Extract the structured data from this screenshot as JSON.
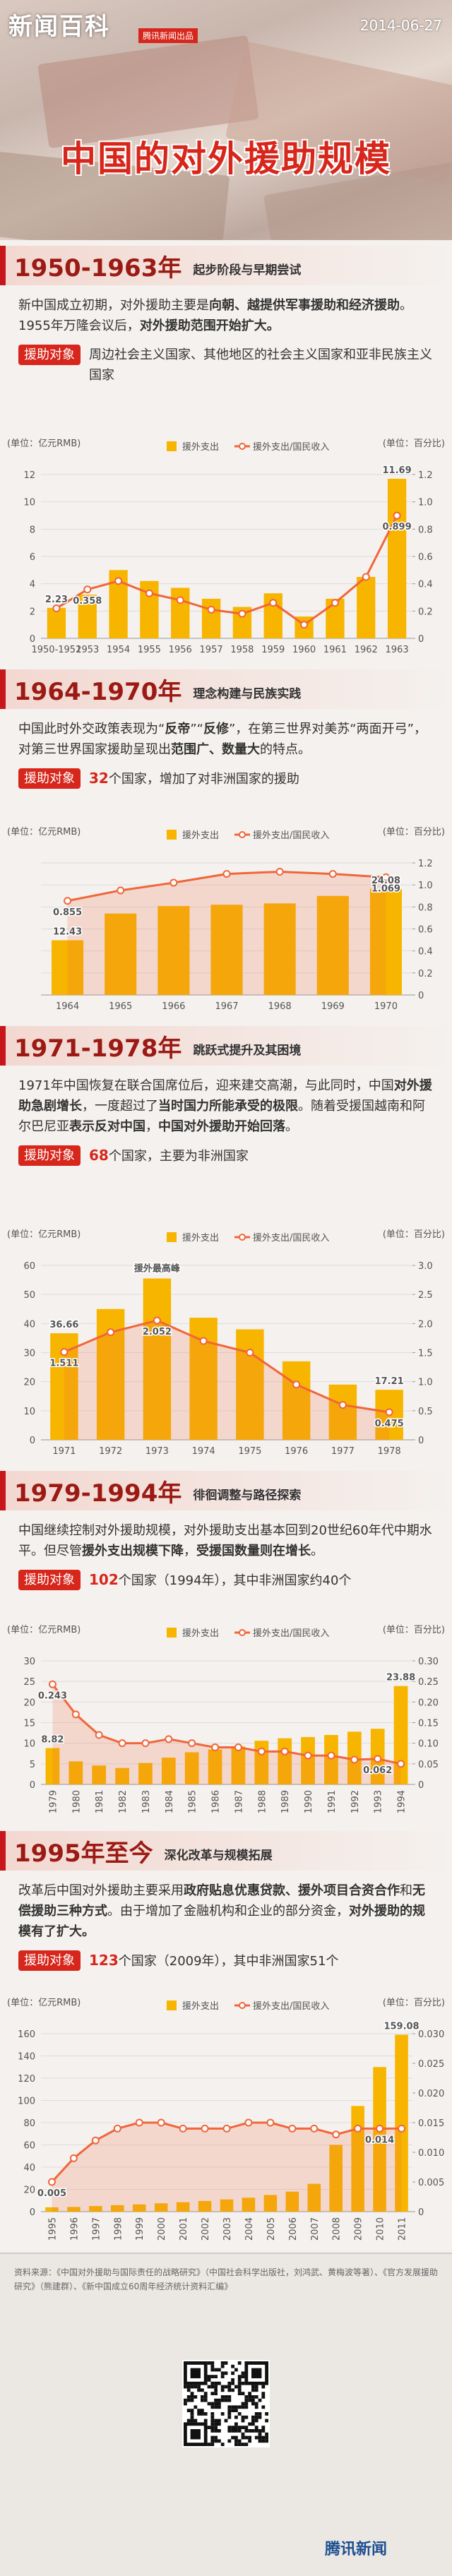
{
  "header": {
    "logo": "新闻百科",
    "brand": "腾讯新闻出品",
    "date": "2014-06-27",
    "title": "中国的对外援助规模"
  },
  "sections": [
    {
      "title": "1950-1963年",
      "subtitle": "起步阶段与早期尝试",
      "paragraph": [
        {
          "text": "新中国成立初期，对外援助主要是"
        },
        {
          "text": "向朝、越提供军事援助和经济援助",
          "style": "bold"
        },
        {
          "text": "。1955年万隆会议后，"
        },
        {
          "text": "对外援助范围开始扩大。",
          "style": "bold"
        }
      ],
      "tag": "援助对象",
      "target": [
        {
          "text": "周边社会主义国家、其他地区的社会主义国家和亚非民族主义国家"
        }
      ]
    },
    {
      "title": "1964-1970年",
      "subtitle": "理念构建与民族实践",
      "paragraph": [
        {
          "text": "中国此时外交政策表现为“"
        },
        {
          "text": "反帝",
          "style": "bold"
        },
        {
          "text": "”“"
        },
        {
          "text": "反修",
          "style": "bold"
        },
        {
          "text": "”，在第三世界对美苏“两面开弓”，对第三世界国家援助呈现出"
        },
        {
          "text": "范围广、数量大",
          "style": "bold"
        },
        {
          "text": "的特点。"
        }
      ],
      "tag": "援助对象",
      "target": [
        {
          "text": "32",
          "style": "red"
        },
        {
          "text": "个国家，增加了对非洲国家的援助"
        }
      ]
    },
    {
      "title": "1971-1978年",
      "subtitle": "跳跃式提升及其困境",
      "paragraph": [
        {
          "text": "1971年中国恢复在联合国席位后，迎来建交高潮，与此同时，中国"
        },
        {
          "text": "对外援助急剧增长",
          "style": "bold"
        },
        {
          "text": "，一度超过了"
        },
        {
          "text": "当时国力所能承受的极限",
          "style": "bold"
        },
        {
          "text": "。随着受援国越南和阿尔巴尼亚"
        },
        {
          "text": "表示反对中国",
          "style": "bold"
        },
        {
          "text": "，"
        },
        {
          "text": "中国对外援助开始回落",
          "style": "bold"
        },
        {
          "text": "。"
        }
      ],
      "tag": "援助对象",
      "target": [
        {
          "text": "68",
          "style": "red"
        },
        {
          "text": "个国家，主要为非洲国家"
        }
      ]
    },
    {
      "title": "1979-1994年",
      "subtitle": "徘徊调整与路径探索",
      "paragraph": [
        {
          "text": "中国继续控制对外援助规模，对外援助支出基本回到20世纪60年代中期水平。但尽管"
        },
        {
          "text": "援外支出规模下降",
          "style": "bold"
        },
        {
          "text": "，"
        },
        {
          "text": "受援国数量则在增长",
          "style": "bold"
        },
        {
          "text": "。"
        }
      ],
      "tag": "援助对象",
      "target": [
        {
          "text": "102",
          "style": "red"
        },
        {
          "text": "个国家（1994年），其中非洲国家约40个"
        }
      ]
    },
    {
      "title": "1995年至今",
      "subtitle": "深化改革与规模拓展",
      "paragraph": [
        {
          "text": "改革后中国对外援助主要采用"
        },
        {
          "text": "政府贴息优惠贷款、援外项目合资合作",
          "style": "bold"
        },
        {
          "text": "和"
        },
        {
          "text": "无偿援助三种方式",
          "style": "bold"
        },
        {
          "text": "。由于增加了金融机构和企业的部分资金，"
        },
        {
          "text": "对外援助的规模有了扩大。",
          "style": "bold"
        }
      ],
      "tag": "援助对象",
      "target": [
        {
          "text": "123",
          "style": "red"
        },
        {
          "text": "个国家（2009年），其中非洲国家51个"
        }
      ]
    }
  ],
  "chart_data": [
    {
      "type": "bar_line",
      "y_label": "(单位：亿元RMB)",
      "y2_label": "(单位：百分比)",
      "x": [
        "1950-1952",
        "1953",
        "1954",
        "1955",
        "1956",
        "1957",
        "1958",
        "1959",
        "1960",
        "1961",
        "1962",
        "1963"
      ],
      "series": [
        {
          "name": "援外支出",
          "type": "bar",
          "color": "#f7b500",
          "values": [
            2.23,
            3.2,
            5.0,
            4.2,
            3.7,
            2.9,
            2.3,
            3.3,
            1.6,
            2.9,
            4.5,
            11.69
          ]
        },
        {
          "name": "援外支出/国民收入",
          "type": "line",
          "axis": "y2",
          "color": "#f0663a",
          "area": false,
          "values": [
            0.22,
            0.358,
            0.42,
            0.33,
            0.28,
            0.21,
            0.18,
            0.26,
            0.1,
            0.26,
            0.45,
            0.899
          ]
        }
      ],
      "ylim": [
        0,
        12
      ],
      "yticks": [
        0,
        2,
        4,
        6,
        8,
        10,
        12
      ],
      "y2lim": [
        0,
        1.2
      ],
      "y2ticks": [
        0,
        0.2,
        0.4,
        0.6,
        0.8,
        {
          "value": 1,
          "label": "1.0"
        },
        1.2
      ],
      "grid": true
    },
    {
      "type": "bar_line",
      "y_label": "(单位：亿元RMB)",
      "y2_label": "(单位：百分比)",
      "x": [
        "1964",
        "1965",
        "1966",
        "1967",
        "1968",
        "1969",
        "1970"
      ],
      "series": [
        {
          "name": "援外支出",
          "type": "bar",
          "color": "#f7b500",
          "values": [
            12.43,
            18.5,
            20.2,
            20.5,
            20.8,
            22.5,
            24.08
          ]
        },
        {
          "name": "援外支出/国民收入",
          "type": "line",
          "axis": "y2",
          "color": "#f0663a",
          "area": true,
          "values": [
            0.855,
            0.95,
            1.02,
            1.1,
            1.12,
            1.1,
            1.069
          ]
        }
      ],
      "ylim": [
        0,
        30
      ],
      "y2lim": [
        0,
        1.2
      ],
      "y2ticks": [
        0,
        0.2,
        0.4,
        0.6,
        0.8,
        {
          "value": 1,
          "label": "1.0"
        },
        1.2
      ],
      "grid": true
    },
    {
      "type": "bar_line",
      "y_label": "(单位：亿元RMB)",
      "y2_label": "(单位：百分比)",
      "annotation": "援外最高峰",
      "x": [
        "1971",
        "1972",
        "1973",
        "1974",
        "1975",
        "1976",
        "1977",
        "1978"
      ],
      "series": [
        {
          "name": "援外支出",
          "type": "bar",
          "color": "#f7b500",
          "values": [
            36.66,
            45,
            55.5,
            42,
            38,
            27,
            19,
            17.21
          ]
        },
        {
          "name": "援外支出/国民收入",
          "type": "line",
          "axis": "y2",
          "color": "#f0663a",
          "area": true,
          "values": [
            1.511,
            1.85,
            2.052,
            1.7,
            1.5,
            0.95,
            0.6,
            0.475
          ]
        }
      ],
      "ylim": [
        0,
        60
      ],
      "yticks": [
        0,
        10,
        20,
        30,
        40,
        50,
        60
      ],
      "y2lim": [
        0,
        3
      ],
      "y2ticks": [
        0,
        0.5,
        {
          "value": 1,
          "label": "1.0"
        },
        1.5,
        {
          "value": 2,
          "label": "2.0"
        },
        2.5,
        {
          "value": 3,
          "label": "3.0"
        }
      ],
      "grid": true
    },
    {
      "type": "bar_line",
      "y_label": "(单位：亿元RMB)",
      "y2_label": "(单位：百分比)",
      "x": [
        "1979",
        "1980",
        "1981",
        "1982",
        "1983",
        "1984",
        "1985",
        "1986",
        "1987",
        "1988",
        "1989",
        "1990",
        "1991",
        "1992",
        "1993",
        "1994"
      ],
      "series": [
        {
          "name": "援外支出",
          "type": "bar",
          "color": "#f7b500",
          "values": [
            8.82,
            5.6,
            4.6,
            4.0,
            5.2,
            6.5,
            7.8,
            8.5,
            9.2,
            10.6,
            11.2,
            11.5,
            12.0,
            12.8,
            13.5,
            23.88
          ]
        },
        {
          "name": "援外支出/国民收入",
          "type": "line",
          "axis": "y2",
          "color": "#f0663a",
          "area": true,
          "values": [
            0.243,
            0.17,
            0.12,
            0.1,
            0.1,
            0.11,
            0.1,
            0.09,
            0.09,
            0.08,
            0.08,
            0.07,
            0.07,
            0.06,
            0.062,
            0.05
          ]
        }
      ],
      "ylim": [
        0,
        30
      ],
      "yticks": [
        0,
        5,
        10,
        15,
        20,
        25,
        30
      ],
      "y2lim": [
        0,
        0.3
      ],
      "y2ticks": [
        0,
        0.05,
        {
          "value": 0.1,
          "label": "0.10"
        },
        0.15,
        {
          "value": 0.2,
          "label": "0.20"
        },
        0.25,
        {
          "value": 0.3,
          "label": "0.30"
        }
      ],
      "grid": true
    },
    {
      "type": "bar_line",
      "y_label": "(单位：亿元RMB)",
      "y2_label": "(单位：百分比)",
      "x": [
        "1995",
        "1996",
        "1997",
        "1998",
        "1999",
        "2000",
        "2001",
        "2002",
        "2003",
        "2004",
        "2005",
        "2006",
        "2007",
        "2008",
        "2009",
        "2010",
        "2011"
      ],
      "series": [
        {
          "name": "援外支出",
          "type": "bar",
          "color": "#f7b500",
          "values": [
            3.9,
            4.2,
            5.0,
            5.8,
            6.5,
            7.5,
            8.5,
            9.6,
            11.0,
            12.5,
            15.0,
            18.0,
            25.0,
            60.0,
            95.0,
            130.0,
            159.08
          ]
        },
        {
          "name": "援外支出/国民收入",
          "type": "line",
          "axis": "y2",
          "color": "#f0663a",
          "area": true,
          "values": [
            0.005,
            0.009,
            0.012,
            0.014,
            0.015,
            0.015,
            0.014,
            0.014,
            0.014,
            0.015,
            0.015,
            0.014,
            0.014,
            0.013,
            0.014,
            0.014,
            0.014
          ]
        }
      ],
      "ylim": [
        0,
        160
      ],
      "yticks": [
        0,
        20,
        40,
        60,
        80,
        100,
        120,
        140,
        160
      ],
      "y2lim": [
        0,
        0.03
      ],
      "y2ticks": [
        0,
        0.005,
        {
          "value": 0.01,
          "label": "0.010"
        },
        0.015,
        {
          "value": 0.02,
          "label": "0.020"
        },
        0.025,
        {
          "value": 0.03,
          "label": "0.030"
        }
      ],
      "grid": true
    }
  ],
  "footer": {
    "source": "资料来源：《中国对外援助与国际责任的战略研究》（中国社会科学出版社，刘鸿武、黄梅波等著）、《官方发展援助研究》（熊建群）、《新中国成立60周年经济统计资料汇编》",
    "logo": "腾讯新闻"
  }
}
